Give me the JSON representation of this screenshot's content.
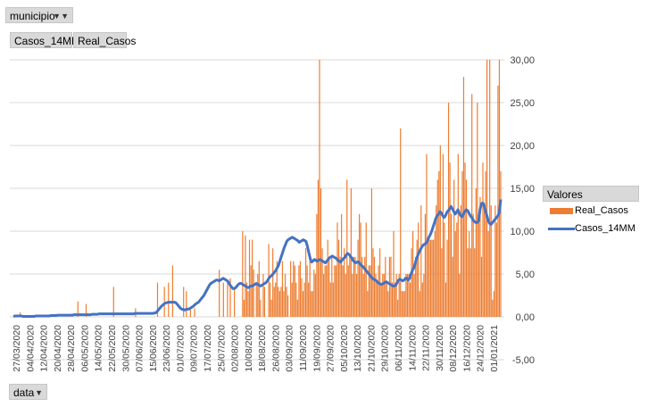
{
  "filter_button": {
    "label": "municipio"
  },
  "value_buttons": {
    "casos14": "Casos_14MM",
    "real": "Real_Casos"
  },
  "axis_button": {
    "label": "data"
  },
  "legend": {
    "title": "Valores",
    "items": [
      "Real_Casos",
      "Casos_14MM"
    ]
  },
  "colors": {
    "bars": "#ED7D31",
    "line": "#4472C4",
    "grid": "#d9d9d9"
  },
  "chart_data": {
    "type": "bar",
    "ylim": [
      -5,
      30
    ],
    "ytick_labels": [
      "-5,00",
      "0,00",
      "5,00",
      "10,00",
      "15,00",
      "20,00",
      "25,00",
      "30,00"
    ],
    "xtick_labels": [
      "27/03/2020",
      "04/04/2020",
      "12/04/2020",
      "20/04/2020",
      "28/04/2020",
      "06/05/2020",
      "14/05/2020",
      "22/05/2020",
      "30/05/2020",
      "07/06/2020",
      "15/06/2020",
      "23/06/2020",
      "01/07/2020",
      "09/07/2020",
      "17/07/2020",
      "25/07/2020",
      "02/08/2020",
      "10/08/2020",
      "18/08/2020",
      "26/08/2020",
      "03/09/2020",
      "11/09/2020",
      "19/09/2020",
      "27/09/2020",
      "05/10/2020",
      "13/10/2020",
      "21/10/2020",
      "29/10/2020",
      "06/11/2020",
      "14/11/2020",
      "22/11/2020",
      "30/11/2020",
      "08/12/2020",
      "16/12/2020",
      "24/12/2020",
      "01/01/2021"
    ],
    "series": [
      {
        "name": "Real_Casos",
        "type": "bar",
        "values": [
          0,
          0,
          0,
          0,
          0,
          0.5,
          0,
          0,
          0,
          0,
          0,
          0,
          0,
          0,
          0,
          0,
          0,
          0,
          0,
          0,
          0,
          0,
          0,
          0,
          0,
          0,
          0,
          0,
          0,
          0,
          0,
          0,
          0,
          0,
          0,
          0,
          0,
          0,
          0,
          0,
          0,
          0,
          0,
          0,
          0,
          0,
          0,
          1.8,
          0,
          0,
          0,
          0,
          0,
          1.5,
          0,
          0,
          0,
          0,
          0,
          0,
          0,
          0,
          0,
          0,
          0,
          0,
          0,
          0,
          0,
          0,
          0,
          0,
          0,
          3.5,
          0,
          0,
          0,
          0,
          0,
          0,
          0,
          0,
          0,
          0,
          0,
          0,
          0,
          0,
          0,
          1,
          0,
          0,
          0,
          0,
          0,
          0,
          0,
          0,
          0,
          0,
          0,
          0,
          0,
          0,
          0,
          4,
          0,
          0,
          0,
          0,
          3.5,
          0,
          0,
          4,
          0,
          0,
          6,
          0,
          0,
          0,
          0,
          0,
          0,
          0,
          3.5,
          0,
          3,
          0,
          0,
          1,
          0,
          0,
          1,
          0,
          0,
          0,
          0,
          0,
          0,
          0,
          0,
          0,
          0,
          0,
          0,
          0,
          0,
          0,
          0,
          0,
          5.5,
          0,
          0,
          4,
          0,
          0,
          4,
          0,
          4.5,
          0,
          0,
          3.5,
          0,
          0,
          0,
          0,
          0,
          10,
          2,
          9.5,
          4,
          3,
          9,
          6,
          9,
          5.5,
          0,
          4,
          5,
          6.5,
          2,
          0,
          5,
          3.5,
          0,
          0,
          8.5,
          4,
          2,
          8,
          3.5,
          4,
          6.5,
          3.5,
          3,
          3.5,
          6.5,
          3,
          5,
          3.5,
          2.5,
          0,
          6.5,
          4,
          6.5,
          6,
          4,
          2,
          6,
          6.5,
          4.5,
          3,
          4,
          8,
          6,
          4,
          7,
          3,
          3,
          5.5,
          5,
          12,
          16,
          30,
          15,
          8,
          5,
          6,
          6,
          9,
          7,
          4,
          7,
          4,
          6,
          6,
          11,
          9,
          7,
          12,
          6,
          8,
          5,
          16,
          6,
          7,
          15,
          5,
          7,
          7,
          5,
          9,
          12,
          11,
          7,
          5,
          7,
          11,
          3,
          6,
          6,
          15,
          8,
          7,
          5,
          4,
          6,
          8,
          4,
          5,
          5,
          7,
          4,
          3,
          7,
          7,
          4,
          10,
          4,
          5,
          2,
          5,
          22,
          3,
          3,
          3,
          5,
          5,
          5,
          4,
          8,
          10,
          5,
          7,
          9,
          11,
          3,
          13,
          4,
          5,
          12,
          19,
          9,
          9,
          9,
          9,
          9,
          10,
          13,
          16,
          17,
          20,
          8,
          19,
          11,
          4,
          9,
          25,
          18,
          12,
          7,
          16,
          10,
          11,
          19,
          5,
          13,
          17,
          28,
          18,
          16,
          8,
          10,
          8,
          26,
          12,
          8,
          15,
          25,
          11,
          14,
          7,
          18,
          13,
          17,
          30,
          10,
          30,
          13,
          2,
          3,
          13,
          11,
          27,
          30,
          17
        ]
      },
      {
        "name": "Casos_14MM",
        "type": "line",
        "values": [
          0.05,
          0.1,
          0.1,
          0.1,
          0.1,
          0.1,
          0.1,
          0.05,
          0.05,
          0.05,
          0.05,
          0.05,
          0.05,
          0.05,
          0.05,
          0.05,
          0.1,
          0.1,
          0.1,
          0.1,
          0.1,
          0.1,
          0.1,
          0.1,
          0.1,
          0.1,
          0.1,
          0.15,
          0.15,
          0.15,
          0.15,
          0.15,
          0.2,
          0.2,
          0.2,
          0.2,
          0.2,
          0.2,
          0.2,
          0.2,
          0.2,
          0.2,
          0.2,
          0.2,
          0.25,
          0.25,
          0.25,
          0.25,
          0.25,
          0.25,
          0.25,
          0.25,
          0.25,
          0.25,
          0.25,
          0.25,
          0.25,
          0.3,
          0.3,
          0.3,
          0.3,
          0.3,
          0.35,
          0.35,
          0.35,
          0.35,
          0.35,
          0.35,
          0.35,
          0.35,
          0.35,
          0.35,
          0.35,
          0.35,
          0.35,
          0.35,
          0.35,
          0.35,
          0.35,
          0.35,
          0.35,
          0.35,
          0.35,
          0.35,
          0.35,
          0.35,
          0.35,
          0.35,
          0.4,
          0.4,
          0.4,
          0.4,
          0.4,
          0.4,
          0.4,
          0.4,
          0.4,
          0.4,
          0.4,
          0.4,
          0.4,
          0.4,
          0.45,
          0.45,
          0.6,
          0.8,
          1,
          1.2,
          1.35,
          1.5,
          1.6,
          1.65,
          1.7,
          1.7,
          1.7,
          1.7,
          1.7,
          1.7,
          1.6,
          1.4,
          1.2,
          1,
          0.9,
          0.85,
          0.8,
          0.85,
          0.9,
          0.9,
          1,
          1.1,
          1.2,
          1.35,
          1.5,
          1.6,
          1.7,
          1.9,
          2.1,
          2.3,
          2.5,
          2.8,
          3.1,
          3.4,
          3.7,
          3.9,
          4,
          4.1,
          4.2,
          4.3,
          4.3,
          4.2,
          4.3,
          4.4,
          4.5,
          4.4,
          4.3,
          4.2,
          4,
          3.7,
          3.5,
          3.3,
          3.3,
          3.4,
          3.6,
          3.8,
          3.9,
          3.9,
          3.8,
          3.7,
          3.6,
          3.5,
          3.4,
          3.5,
          3.6,
          3.6,
          3.7,
          3.8,
          3.9,
          3.8,
          3.7,
          3.6,
          3.7,
          3.8,
          3.9,
          4,
          4.2,
          4.5,
          4.7,
          4.8,
          5,
          5.2,
          5.4,
          5.7,
          6,
          6.5,
          7,
          7.5,
          8,
          8.4,
          8.8,
          9,
          9.1,
          9.2,
          9.3,
          9.2,
          9.1,
          9,
          8.9,
          8.7,
          8.8,
          8.9,
          9,
          8.9,
          8.8,
          8.2,
          7.5,
          6.8,
          6.4,
          6.5,
          6.7,
          6.6,
          6.5,
          6.6,
          6.7,
          6.6,
          6.5,
          6.4,
          6.3,
          6.5,
          6.7,
          6.9,
          7,
          7.1,
          7,
          6.9,
          6.8,
          6.6,
          6.5,
          6.4,
          6.6,
          6.8,
          6.9,
          7.2,
          7.4,
          7.3,
          7.1,
          6.9,
          6.6,
          6.4,
          6.3,
          6.4,
          6.4,
          6.2,
          6,
          5.9,
          5.7,
          5.5,
          5.3,
          5.1,
          4.9,
          4.7,
          4.5,
          4.4,
          4.3,
          4.2,
          4,
          3.9,
          3.8,
          3.8,
          3.9,
          4,
          4.1,
          4,
          3.9,
          3.8,
          3.7,
          3.6,
          3.6,
          3.7,
          4,
          4.3,
          4.4,
          4.3,
          4.2,
          4.3,
          4.5,
          4.5,
          4.3,
          4.5,
          5,
          5.4,
          5.7,
          6.2,
          6.8,
          7.2,
          7.6,
          7.9,
          8.2,
          8.4,
          8.5,
          8.6,
          8.9,
          9.3,
          9.6,
          10,
          10.5,
          11,
          11.5,
          11.8,
          12,
          12.3,
          12.1,
          11.8,
          11.6,
          11.8,
          12.2,
          12.4,
          12.6,
          12.9,
          12.6,
          12.3,
          12,
          12.2,
          12.5,
          12.1,
          11.8,
          11.7,
          12,
          12.3,
          12.5,
          12.4,
          12.1,
          11.8,
          11.6,
          11.3,
          11.1,
          11,
          11,
          11.2,
          12.5,
          13.2,
          13.3,
          13,
          12.3,
          11.8,
          11.2,
          10.9,
          10.8,
          11,
          11.2,
          11.4,
          11.6,
          11.8,
          12.2,
          13.7
        ]
      }
    ]
  }
}
